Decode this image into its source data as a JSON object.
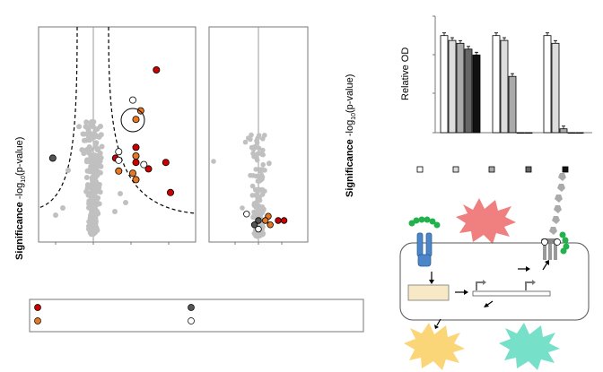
{
  "volcano_left": {
    "ylabel_bold": "Significance",
    "ylabel_rest": " -log",
    "ylabel_sub": "10",
    "ylabel_paren": "(p-value)"
  },
  "volcano_right": {
    "ylabel_bold": "Significance",
    "ylabel_rest": " -log",
    "ylabel_sub": "10",
    "ylabel_paren": "(p-value)"
  },
  "bar_chart": {
    "ylabel": "Relative OD"
  },
  "chart_data": [
    {
      "type": "scatter",
      "ylabel": "Significance -log10(p-value)",
      "grid": false,
      "series": [
        {
          "color": "#cc0000",
          "points": [
            [
              0.75,
              0.2
            ],
            [
              0.62,
              0.56
            ],
            [
              0.7,
              0.66
            ],
            [
              0.84,
              0.77
            ],
            [
              0.62,
              0.63
            ],
            [
              0.81,
              0.63
            ],
            [
              0.49,
              0.61
            ]
          ]
        },
        {
          "color": "#e87722",
          "points": [
            [
              0.65,
              0.39
            ],
            [
              0.62,
              0.43
            ],
            [
              0.62,
              0.6
            ],
            [
              0.62,
              0.71
            ],
            [
              0.6,
              0.68
            ],
            [
              0.51,
              0.67
            ]
          ]
        },
        {
          "color": "#555555",
          "points": [
            [
              0.09,
              0.61
            ]
          ]
        },
        {
          "color": "#ffffff",
          "points": [
            [
              0.6,
              0.34
            ],
            [
              0.51,
              0.58
            ],
            [
              0.51,
              0.62
            ],
            [
              0.67,
              0.64
            ]
          ]
        }
      ]
    },
    {
      "type": "scatter",
      "ylabel": "Significance -log10(p-value)",
      "grid": false,
      "series": [
        {
          "color": "#cc0000",
          "points": [
            [
              0.76,
              0.9
            ],
            [
              0.7,
              0.9
            ]
          ]
        },
        {
          "color": "#e87722",
          "points": [
            [
              0.6,
              0.88
            ],
            [
              0.57,
              0.9
            ],
            [
              0.62,
              0.92
            ]
          ]
        },
        {
          "color": "#555555",
          "points": [
            [
              0.5,
              0.9
            ],
            [
              0.46,
              0.92
            ]
          ]
        },
        {
          "color": "#ffffff",
          "points": [
            [
              0.38,
              0.87
            ],
            [
              0.5,
              0.94
            ]
          ]
        }
      ]
    },
    {
      "type": "bar",
      "ylabel": "Relative OD",
      "categories": [
        "",
        "",
        ""
      ],
      "series": [
        {
          "color": "#ffffff",
          "values": [
            1.0,
            1.0,
            1.0
          ]
        },
        {
          "color": "#dddddd",
          "values": [
            0.95,
            0.95,
            0.92
          ]
        },
        {
          "color": "#aaaaaa",
          "values": [
            0.92,
            0.58,
            0.04
          ]
        },
        {
          "color": "#666666",
          "values": [
            0.86,
            0.0,
            0.0
          ]
        },
        {
          "color": "#111111",
          "values": [
            0.8,
            0.0,
            0.0
          ]
        }
      ],
      "ylim": [
        0,
        1.2
      ]
    }
  ],
  "colors": {
    "red": "#cc0000",
    "orange": "#e87722",
    "dark_gray": "#555555",
    "light_gray": "#c0c0c0",
    "receptor_blue": "#4a86c8",
    "green": "#22b14c",
    "pink_burst": "#f07f7f",
    "yellow_burst": "#fbd678",
    "teal_burst": "#77e0c8",
    "box_fill": "#f7e8c6"
  }
}
